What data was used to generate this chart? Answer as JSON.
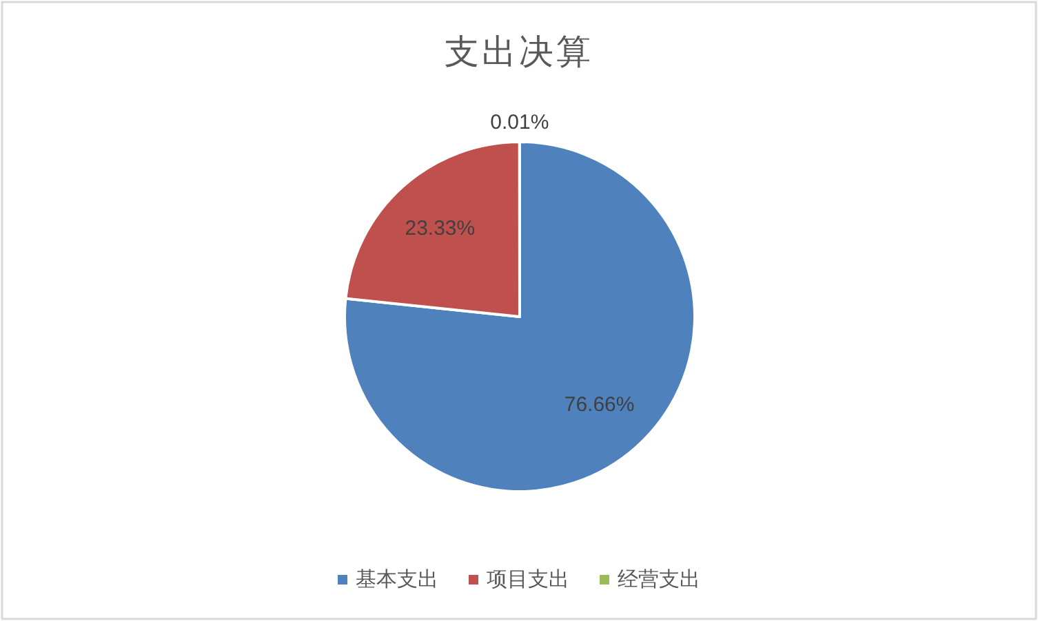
{
  "chart_data": {
    "type": "pie",
    "title": "支出决算",
    "categories": [
      "基本支出",
      "项目支出",
      "经营支出"
    ],
    "values": [
      76.66,
      23.33,
      0.01
    ],
    "colors": [
      "#4f81bd",
      "#c0504d",
      "#9bbb59"
    ],
    "value_labels": [
      "76.66%",
      "23.33%",
      "0.01%"
    ],
    "legend": "bottom"
  }
}
